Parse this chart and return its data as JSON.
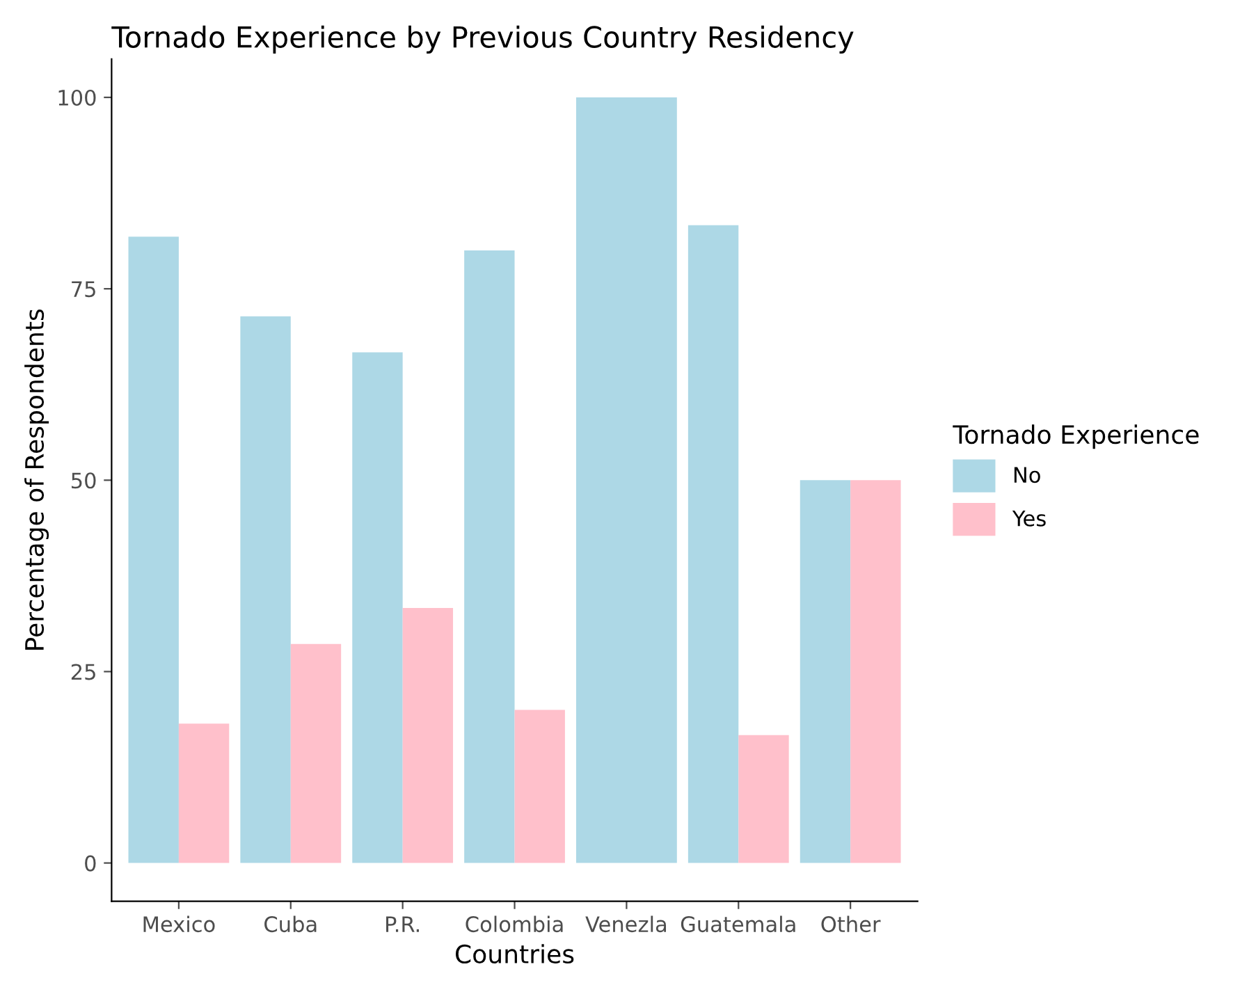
{
  "chart_data": {
    "type": "bar",
    "title": "Tornado Experience by Previous Country Residency",
    "xlabel": "Countries",
    "ylabel": "Percentage of Respondents",
    "legend_title": "Tornado Experience",
    "categories": [
      "Mexico",
      "Cuba",
      "P.R.",
      "Colombia",
      "Venezla",
      "Guatemala",
      "Other"
    ],
    "series": [
      {
        "name": "No",
        "color": "#add8e6",
        "values": [
          81.8,
          71.4,
          66.7,
          80,
          100,
          83.3,
          50
        ]
      },
      {
        "name": "Yes",
        "color": "#ffc0cb",
        "values": [
          18.2,
          28.6,
          33.3,
          20,
          null,
          16.7,
          50
        ]
      }
    ],
    "ylim": [
      -5,
      105
    ],
    "yticks": [
      0,
      25,
      50,
      75,
      100
    ],
    "grid": false,
    "legend": "right"
  }
}
